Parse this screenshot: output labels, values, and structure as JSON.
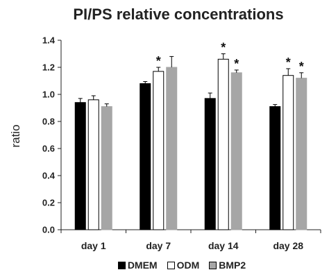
{
  "chart_data": {
    "type": "bar",
    "title": "PI/PS relative concentrations",
    "xlabel": "",
    "ylabel": "ratio",
    "ylim": [
      0,
      1.4
    ],
    "yticks": [
      "0.0",
      "0.2",
      "0.4",
      "0.6",
      "0.8",
      "1.0",
      "1.2",
      "1.4"
    ],
    "categories": [
      "day 1",
      "day 7",
      "day 14",
      "day 28"
    ],
    "series": [
      {
        "name": "DMEM",
        "color": "#000000",
        "values": [
          0.94,
          1.08,
          0.97,
          0.91
        ],
        "errors": [
          0.03,
          0.015,
          0.04,
          0.015
        ],
        "significant": [
          false,
          false,
          false,
          false
        ]
      },
      {
        "name": "ODM",
        "color": "#ffffff",
        "values": [
          0.96,
          1.17,
          1.26,
          1.14
        ],
        "errors": [
          0.03,
          0.03,
          0.04,
          0.05
        ],
        "significant": [
          false,
          true,
          true,
          true
        ]
      },
      {
        "name": "BMP2",
        "color": "#a6a6a6",
        "values": [
          0.91,
          1.2,
          1.16,
          1.12
        ],
        "errors": [
          0.02,
          0.08,
          0.02,
          0.04
        ],
        "significant": [
          false,
          false,
          true,
          true
        ]
      }
    ],
    "significance_marker": "*",
    "grid": false,
    "legend_position": "bottom"
  }
}
